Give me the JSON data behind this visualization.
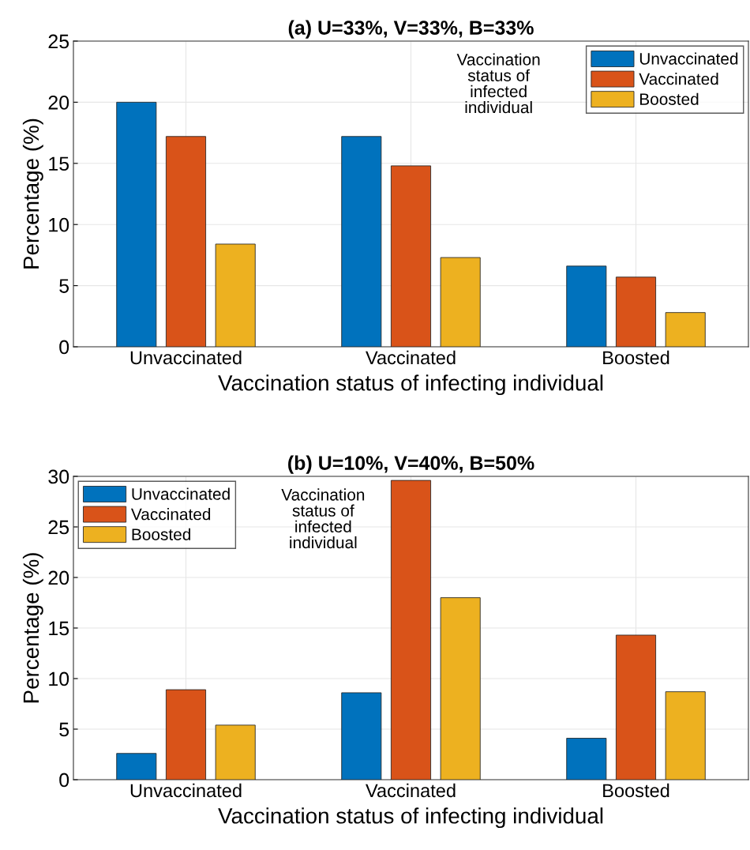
{
  "chart_data": [
    {
      "type": "bar",
      "title": "(a) U=33%, V=33%, B=33%",
      "xlabel": "Vaccination status of infecting individual",
      "ylabel": "Percentage (%)",
      "legend_title": "Vaccination\nstatus of\ninfected\nindividual",
      "categories": [
        "Unvaccinated",
        "Vaccinated",
        "Boosted"
      ],
      "series": [
        {
          "name": "Unvaccinated",
          "color": "#0072bd",
          "values": [
            20.0,
            17.2,
            6.6
          ]
        },
        {
          "name": "Vaccinated",
          "color": "#d95319",
          "values": [
            17.2,
            14.8,
            5.7
          ]
        },
        {
          "name": "Boosted",
          "color": "#edb120",
          "values": [
            8.4,
            7.3,
            2.8
          ]
        }
      ],
      "ylim": [
        0,
        25
      ],
      "yticks": [
        0,
        5,
        10,
        15,
        20,
        25
      ],
      "grid": true,
      "legend": "top right"
    },
    {
      "type": "bar",
      "title": "(b) U=10%, V=40%, B=50%",
      "xlabel": "Vaccination status of infecting individual",
      "ylabel": "Percentage (%)",
      "legend_title": "Vaccination\nstatus of\ninfected\nindividual",
      "categories": [
        "Unvaccinated",
        "Vaccinated",
        "Boosted"
      ],
      "series": [
        {
          "name": "Unvaccinated",
          "color": "#0072bd",
          "values": [
            2.6,
            8.6,
            4.1
          ]
        },
        {
          "name": "Vaccinated",
          "color": "#d95319",
          "values": [
            8.9,
            29.6,
            14.3
          ]
        },
        {
          "name": "Boosted",
          "color": "#edb120",
          "values": [
            5.4,
            18.0,
            8.7
          ]
        }
      ],
      "ylim": [
        0,
        30
      ],
      "yticks": [
        0,
        5,
        10,
        15,
        20,
        25,
        30
      ],
      "grid": true,
      "legend": "top left"
    }
  ]
}
